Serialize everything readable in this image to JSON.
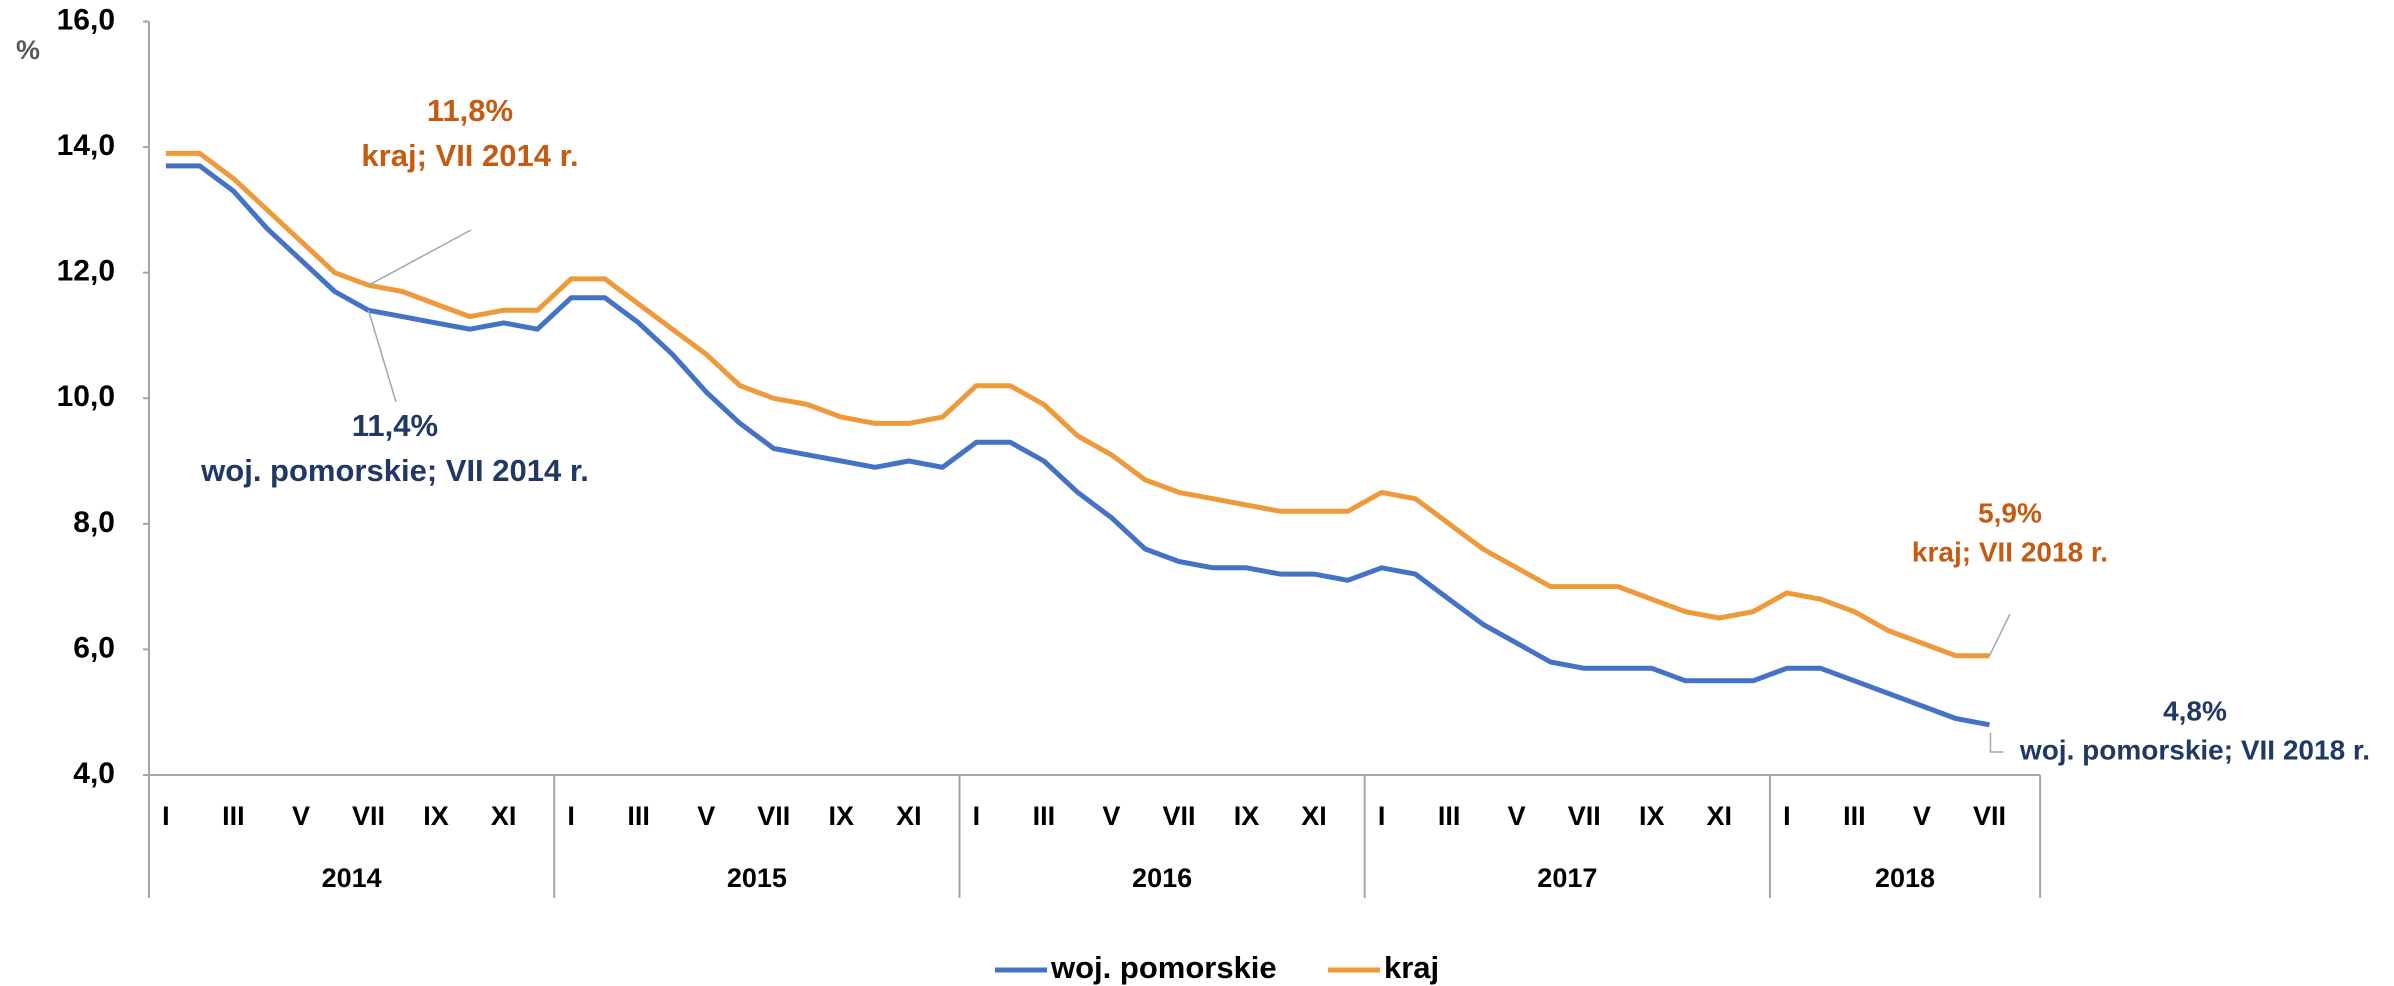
{
  "chart_data": {
    "type": "line",
    "y_unit": "%",
    "categories": [
      "I",
      null,
      "III",
      null,
      "V",
      null,
      "VII",
      null,
      "IX",
      null,
      "XI",
      null,
      "I",
      null,
      "III",
      null,
      "V",
      null,
      "VII",
      null,
      "IX",
      null,
      "XI",
      null,
      "I",
      null,
      "III",
      null,
      "V",
      null,
      "VII",
      null,
      "IX",
      null,
      "XI",
      null,
      "I",
      null,
      "III",
      null,
      "V",
      null,
      "VII",
      null,
      "IX",
      null,
      "XI",
      null,
      "I",
      null,
      "III",
      null,
      "V",
      null,
      "VII"
    ],
    "years": [
      "2014",
      "2015",
      "2016",
      "2017",
      "2018"
    ],
    "series": [
      {
        "name": "woj. pomorskie",
        "color": "#4472c4",
        "values": [
          13.7,
          13.7,
          13.3,
          12.7,
          12.2,
          11.7,
          11.4,
          11.3,
          11.2,
          11.1,
          11.2,
          11.1,
          11.6,
          11.6,
          11.2,
          10.7,
          10.1,
          9.6,
          9.2,
          9.1,
          9.0,
          8.9,
          9.0,
          8.9,
          9.3,
          9.3,
          9.0,
          8.5,
          8.1,
          7.6,
          7.4,
          7.3,
          7.3,
          7.2,
          7.2,
          7.1,
          7.3,
          7.2,
          6.8,
          6.4,
          6.1,
          5.8,
          5.7,
          5.7,
          5.7,
          5.5,
          5.5,
          5.5,
          5.7,
          5.7,
          5.5,
          5.3,
          5.1,
          4.9,
          4.8
        ]
      },
      {
        "name": "kraj",
        "color": "#ee9a3a",
        "values": [
          13.9,
          13.9,
          13.5,
          13.0,
          12.5,
          12.0,
          11.8,
          11.7,
          11.5,
          11.3,
          11.4,
          11.4,
          11.9,
          11.9,
          11.5,
          11.1,
          10.7,
          10.2,
          10.0,
          9.9,
          9.7,
          9.6,
          9.6,
          9.7,
          10.2,
          10.2,
          9.9,
          9.4,
          9.1,
          8.7,
          8.5,
          8.4,
          8.3,
          8.2,
          8.2,
          8.2,
          8.5,
          8.4,
          8.0,
          7.6,
          7.3,
          7.0,
          7.0,
          7.0,
          6.8,
          6.6,
          6.5,
          6.6,
          6.9,
          6.8,
          6.6,
          6.3,
          6.1,
          5.9,
          5.9
        ]
      }
    ],
    "annotations": [
      {
        "lines": [
          "11,8%",
          "kraj; VII 2014 r."
        ],
        "color": "#c55a11"
      },
      {
        "lines": [
          "11,4%",
          "woj. pomorskie; VII 2014 r."
        ],
        "color": "#1f3864"
      },
      {
        "lines": [
          "5,9%",
          "kraj; VII 2018 r."
        ],
        "color": "#c55a11"
      },
      {
        "lines": [
          "4,8%",
          "woj. pomorskie; VII 2018 r."
        ],
        "color": "#1f3864"
      }
    ],
    "ylim": [
      4,
      16
    ],
    "yticks": [
      {
        "value": 4,
        "label": "4,0"
      },
      {
        "value": 6,
        "label": "6,0"
      },
      {
        "value": 8,
        "label": "8,0"
      },
      {
        "value": 10,
        "label": "10,0"
      },
      {
        "value": 12,
        "label": "12,0"
      },
      {
        "value": 14,
        "label": "14,0"
      },
      {
        "value": 16,
        "label": "16,0"
      }
    ],
    "grid": false,
    "legend": "bottom"
  }
}
